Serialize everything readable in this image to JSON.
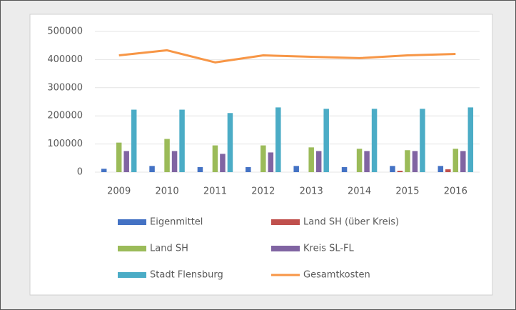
{
  "chart_data": {
    "type": "bar",
    "categories": [
      "2009",
      "2010",
      "2011",
      "2012",
      "2013",
      "2014",
      "2015",
      "2016"
    ],
    "series": [
      {
        "name": "Eigenmittel",
        "color": "#4472c4",
        "values": [
          12000,
          22000,
          18000,
          18000,
          22000,
          18000,
          22000,
          22000
        ]
      },
      {
        "name": "Land SH (über Kreis)",
        "color": "#c0504d",
        "values": [
          0,
          0,
          0,
          0,
          0,
          0,
          5000,
          10000
        ]
      },
      {
        "name": "Land SH",
        "color": "#9bbb59",
        "values": [
          105000,
          118000,
          95000,
          95000,
          88000,
          83000,
          78000,
          83000
        ]
      },
      {
        "name": "Kreis SL-FL",
        "color": "#8064a2",
        "values": [
          75000,
          75000,
          65000,
          70000,
          75000,
          75000,
          75000,
          75000
        ]
      },
      {
        "name": "Stadt Flensburg",
        "color": "#4bacc6",
        "values": [
          222000,
          222000,
          210000,
          230000,
          225000,
          225000,
          225000,
          230000
        ]
      },
      {
        "name": "Gesamtkosten",
        "type": "line",
        "color": "#f79646",
        "values": [
          415000,
          433000,
          390000,
          415000,
          410000,
          405000,
          415000,
          420000
        ]
      }
    ],
    "ylim": [
      0,
      500000
    ],
    "yticks": [
      0,
      100000,
      200000,
      300000,
      400000,
      500000
    ],
    "grid": true,
    "legend": "bottom"
  }
}
